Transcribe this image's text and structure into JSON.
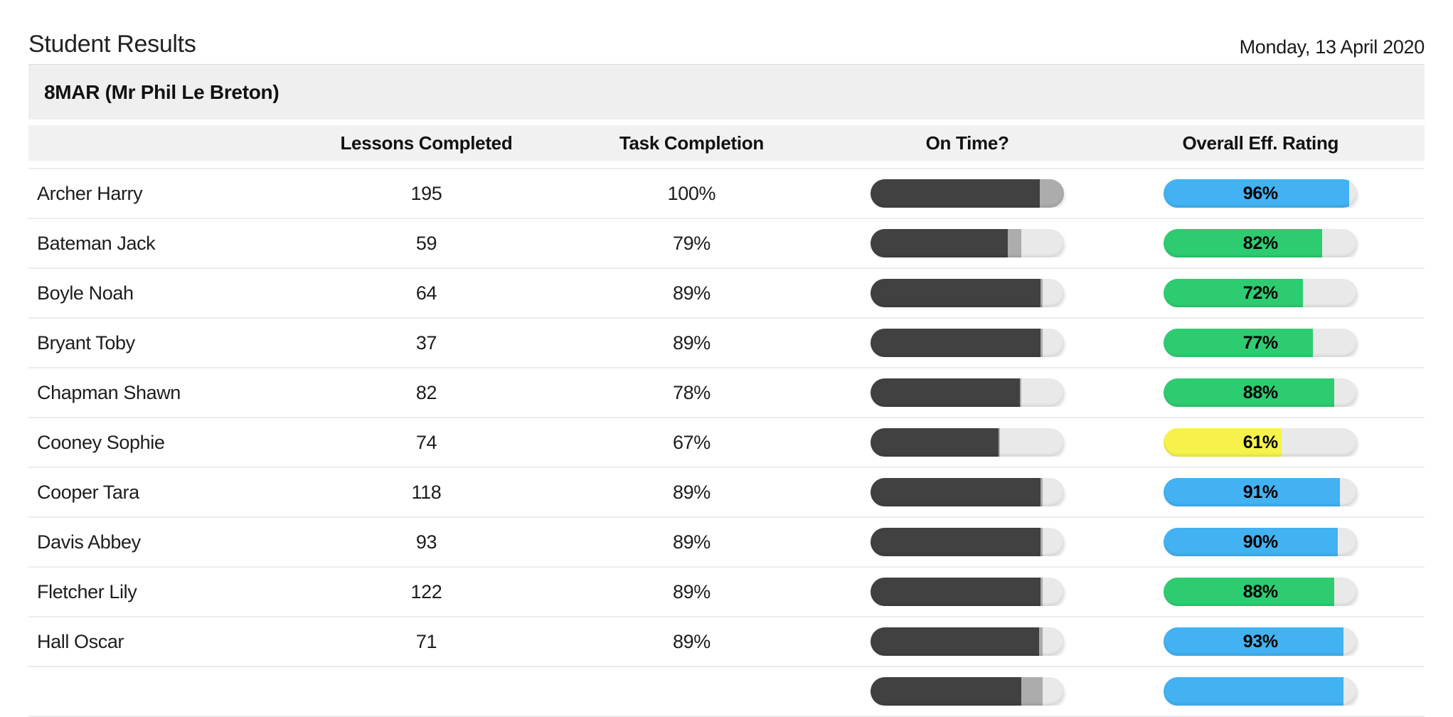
{
  "page": {
    "title": "Student Results",
    "date": "Monday, 13 April 2020",
    "group_header": "8MAR (Mr Phil Le Breton)"
  },
  "columns": {
    "name": "",
    "lessons": "Lessons Completed",
    "task": "Task Completion",
    "on_time": "On Time?",
    "rating": "Overall Eff. Rating"
  },
  "colors": {
    "blue": "#42b2f2",
    "green": "#2ecc71",
    "yellow": "#f6f24b",
    "bar_dark": "#414141",
    "bar_late": "#acacac",
    "bar_track": "#e9e9e9"
  },
  "table": {
    "rows": [
      {
        "name": "Archer Harry",
        "lessons": "195",
        "task": "100%",
        "on_time_pct": 87.5,
        "late_pct": 12.5,
        "rating_pct": 96,
        "rating_label": "96%",
        "rating_color": "blue",
        "partial": false
      },
      {
        "name": "Bateman Jack",
        "lessons": "59",
        "task": "79%",
        "on_time_pct": 71,
        "late_pct": 7,
        "rating_pct": 82,
        "rating_label": "82%",
        "rating_color": "green",
        "partial": false
      },
      {
        "name": "Boyle Noah",
        "lessons": "64",
        "task": "89%",
        "on_time_pct": 88,
        "late_pct": 1,
        "rating_pct": 72,
        "rating_label": "72%",
        "rating_color": "green",
        "partial": false
      },
      {
        "name": "Bryant Toby",
        "lessons": "37",
        "task": "89%",
        "on_time_pct": 88,
        "late_pct": 1,
        "rating_pct": 77,
        "rating_label": "77%",
        "rating_color": "green",
        "partial": false
      },
      {
        "name": "Chapman Shawn",
        "lessons": "82",
        "task": "78%",
        "on_time_pct": 77,
        "late_pct": 1,
        "rating_pct": 88,
        "rating_label": "88%",
        "rating_color": "green",
        "partial": false
      },
      {
        "name": "Cooney Sophie",
        "lessons": "74",
        "task": "67%",
        "on_time_pct": 66,
        "late_pct": 1,
        "rating_pct": 61,
        "rating_label": "61%",
        "rating_color": "yellow",
        "partial": false
      },
      {
        "name": "Cooper Tara",
        "lessons": "118",
        "task": "89%",
        "on_time_pct": 88,
        "late_pct": 1,
        "rating_pct": 91,
        "rating_label": "91%",
        "rating_color": "blue",
        "partial": false
      },
      {
        "name": "Davis Abbey",
        "lessons": "93",
        "task": "89%",
        "on_time_pct": 88,
        "late_pct": 1,
        "rating_pct": 90,
        "rating_label": "90%",
        "rating_color": "blue",
        "partial": false
      },
      {
        "name": "Fletcher Lily",
        "lessons": "122",
        "task": "89%",
        "on_time_pct": 88,
        "late_pct": 1,
        "rating_pct": 88,
        "rating_label": "88%",
        "rating_color": "green",
        "partial": false
      },
      {
        "name": "Hall Oscar",
        "lessons": "71",
        "task": "89%",
        "on_time_pct": 87,
        "late_pct": 2,
        "rating_pct": 93,
        "rating_label": "93%",
        "rating_color": "blue",
        "partial": false
      },
      {
        "name": "",
        "lessons": "",
        "task": "",
        "on_time_pct": 78,
        "late_pct": 11,
        "rating_pct": 93,
        "rating_label": "",
        "rating_color": "blue",
        "partial": true
      }
    ]
  }
}
